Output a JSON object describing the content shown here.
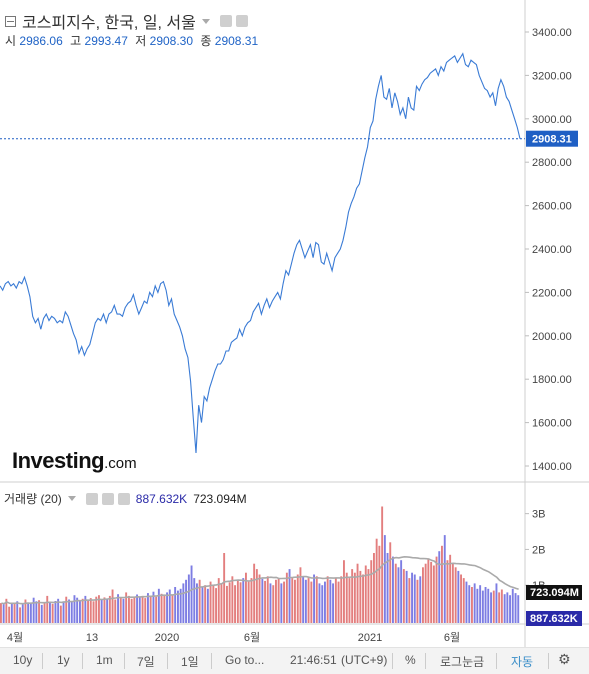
{
  "header": {
    "title": "코스피지수, 한국, 일, 서울",
    "ohlc": [
      {
        "label": "시",
        "value": "2986.06"
      },
      {
        "label": "고",
        "value": "2993.47"
      },
      {
        "label": "저",
        "value": "2908.30"
      },
      {
        "label": "종",
        "value": "2908.31"
      }
    ]
  },
  "volume_header": {
    "label": "거래량 (20)",
    "value1": "887.632K",
    "value2": "723.094M"
  },
  "logo": {
    "main": "Investing",
    "suffix": ".com"
  },
  "footer": {
    "ranges": [
      "10y",
      "1y",
      "1m",
      "7일",
      "1일"
    ],
    "goto": "Go to...",
    "time": "21:46:51",
    "timezone": "(UTC+9)",
    "percent": "%",
    "log": "로그눈금",
    "auto": "자동"
  },
  "colors": {
    "price_line": "#3a7bd5",
    "axis_text": "#444444",
    "last_price_bg": "#1f5fc4",
    "up_volume": "#e07070",
    "down_volume": "#6f6fe0",
    "ma_line": "#aaaaaa",
    "auto_text": "#3a8ec8"
  },
  "chart_data": [
    {
      "type": "line",
      "title": "코스피지수, 한국, 일, 서울",
      "x_ticks": [
        "4월",
        "13",
        "2020",
        "6월",
        "2021",
        "6월"
      ],
      "ylim": [
        1350,
        3450
      ],
      "y_ticks": [
        "1400.00",
        "1600.00",
        "1800.00",
        "2000.00",
        "2200.00",
        "2400.00",
        "2600.00",
        "2800.00",
        "3000.00",
        "3200.00",
        "3400.00"
      ],
      "last_price_label": "2908.31",
      "last_price": 2908.31,
      "series": [
        {
          "values": [
            2230,
            2210,
            2240,
            2250,
            2230,
            2240,
            2220,
            2250,
            2240,
            2270,
            2230,
            2180,
            2090,
            2060,
            2080,
            2030,
            2080,
            2100,
            2070,
            2090,
            2080,
            2060,
            2070,
            2060,
            2110,
            2090,
            2050,
            2010,
            1980,
            1920,
            1950,
            1910,
            1940,
            1960,
            2010,
            2060,
            2080,
            2070,
            2100,
            2060,
            2100,
            2110,
            2140,
            2100,
            2100,
            2090,
            2130,
            2150,
            2160,
            2190,
            2140,
            2100,
            2130,
            2160,
            2150,
            2200,
            2180,
            2230,
            2200,
            2240,
            2250,
            2210,
            2140,
            2170,
            2100,
            2070,
            2040,
            2000,
            1940,
            1900,
            1790,
            1620,
            1460,
            1680,
            1600,
            1720,
            1700,
            1760,
            1800,
            1840,
            1870,
            1870,
            1890,
            1930,
            1930,
            1970,
            1980,
            1990,
            2030,
            2000,
            2040,
            2060,
            2070,
            2110,
            2130,
            2150,
            2100,
            2140,
            2170,
            2130,
            2160,
            2180,
            2200,
            2170,
            2240,
            2300,
            2280,
            2330,
            2380,
            2420,
            2440,
            2400,
            2360,
            2390,
            2420,
            2360,
            2430,
            2420,
            2340,
            2330,
            2380,
            2340,
            2300,
            2360,
            2380,
            2400,
            2440,
            2500,
            2570,
            2610,
            2640,
            2680,
            2700,
            2760,
            2820,
            2870,
            2960,
            2990,
            3090,
            3150,
            3200,
            3100,
            3090,
            3140,
            3050,
            3120,
            3080,
            3020,
            3050,
            3000,
            3100,
            3050,
            3040,
            3150,
            3130,
            3160,
            3180,
            3190,
            3210,
            3220,
            3230,
            3200,
            3240,
            3220,
            3260,
            3270,
            3280,
            3290,
            3260,
            3280,
            3300,
            3250,
            3240,
            3270,
            3260,
            3250,
            3200,
            3170,
            3140,
            3130,
            3100,
            3120,
            3060,
            3140,
            3180,
            3150,
            3100,
            3080,
            3040,
            3000,
            2960,
            2908.31
          ]
        }
      ]
    },
    {
      "type": "bar",
      "title": "거래량 (20)",
      "ylim": [
        0,
        3.8
      ],
      "y_ticks": [
        "1B",
        "2B",
        "3B"
      ],
      "last_value_labels": [
        "723.094M",
        "887.632K"
      ],
      "series": [
        {
          "name": "volume",
          "values": [
            0.5,
            0.47,
            0.62,
            0.4,
            0.48,
            0.5,
            0.55,
            0.38,
            0.46,
            0.6,
            0.52,
            0.48,
            0.65,
            0.55,
            0.58,
            0.45,
            0.5,
            0.7,
            0.52,
            0.48,
            0.56,
            0.62,
            0.43,
            0.55,
            0.68,
            0.6,
            0.54,
            0.72,
            0.65,
            0.58,
            0.62,
            0.7,
            0.58,
            0.64,
            0.55,
            0.68,
            0.72,
            0.6,
            0.66,
            0.62,
            0.7,
            0.88,
            0.6,
            0.75,
            0.66,
            0.62,
            0.8,
            0.7,
            0.62,
            0.68,
            0.74,
            0.66,
            0.7,
            0.64,
            0.78,
            0.7,
            0.82,
            0.68,
            0.9,
            0.76,
            0.72,
            0.8,
            0.88,
            0.74,
            0.95,
            0.85,
            0.9,
            1.05,
            1.15,
            1.3,
            1.55,
            1.2,
            1.05,
            1.15,
            0.95,
            1.0,
            0.9,
            1.1,
            1.0,
            0.92,
            1.2,
            1.02,
            1.9,
            0.98,
            1.08,
            1.25,
            1.0,
            1.15,
            1.08,
            1.2,
            1.35,
            1.1,
            1.2,
            1.6,
            1.45,
            1.3,
            1.18,
            1.12,
            1.25,
            1.05,
            1.0,
            1.15,
            1.2,
            1.05,
            1.1,
            1.35,
            1.45,
            1.2,
            1.15,
            1.3,
            1.5,
            1.25,
            1.15,
            1.2,
            1.1,
            1.3,
            1.25,
            1.05,
            1.0,
            1.1,
            1.25,
            1.15,
            1.05,
            1.2,
            1.1,
            1.25,
            1.7,
            1.35,
            1.2,
            1.45,
            1.35,
            1.6,
            1.4,
            1.3,
            1.55,
            1.45,
            1.7,
            1.9,
            2.3,
            2.1,
            3.2,
            2.4,
            1.9,
            2.2,
            1.8,
            1.6,
            1.5,
            1.7,
            1.45,
            1.4,
            1.2,
            1.35,
            1.3,
            1.15,
            1.25,
            1.5,
            1.6,
            1.75,
            1.65,
            1.55,
            1.8,
            1.95,
            2.1,
            2.4,
            1.7,
            1.85,
            1.6,
            1.5,
            1.4,
            1.3,
            1.2,
            1.1,
            1.0,
            0.95,
            1.05,
            0.9,
            1.0,
            0.85,
            0.95,
            0.9,
            0.8,
            0.85,
            1.05,
            0.8,
            0.88,
            0.75,
            0.8,
            0.72,
            0.9,
            0.78,
            0.72
          ]
        }
      ]
    }
  ]
}
